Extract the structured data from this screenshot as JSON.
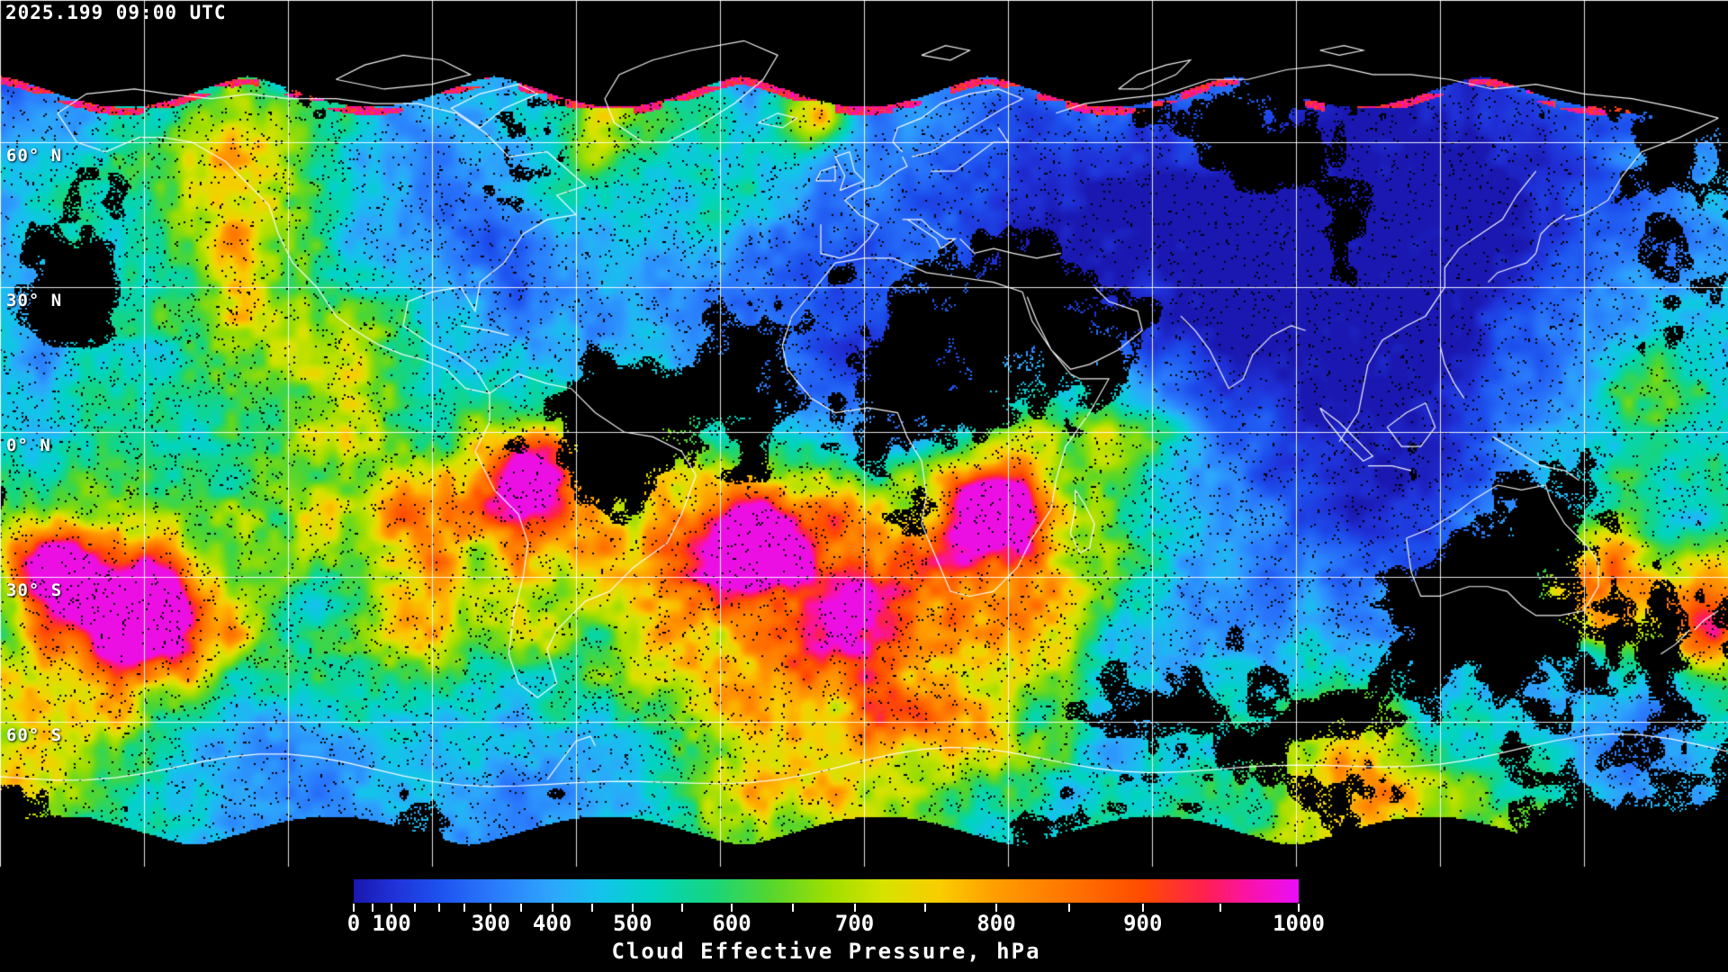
{
  "header": {
    "timestamp": "2025.199 09:00 UTC"
  },
  "map": {
    "latitude_labels": [
      {
        "text": "60° N",
        "lat": 60
      },
      {
        "text": "30° N",
        "lat": 30
      },
      {
        "text": "0° N",
        "lat": 0
      },
      {
        "text": "30° S",
        "lat": -30
      },
      {
        "text": "60° S",
        "lat": -60
      }
    ],
    "grid_color": "#ffffff",
    "coastline_color": "#ffffff",
    "background_color": "#000000",
    "lon_gridline_spacing_deg": 30,
    "lat_gridline_spacing_deg": 30
  },
  "colorbar": {
    "title": "Cloud Effective Pressure, hPa",
    "units": "hPa",
    "min": 0,
    "max": 1000,
    "labeled_ticks": [
      0,
      100,
      300,
      400,
      500,
      600,
      700,
      800,
      900,
      1000
    ],
    "minor_tick_step": 50,
    "scale_anchors": [
      {
        "value": 0,
        "pct": 0
      },
      {
        "value": 100,
        "pct": 4.0
      },
      {
        "value": 200,
        "pct": 9.0
      },
      {
        "value": 300,
        "pct": 14.5
      },
      {
        "value": 400,
        "pct": 21.0
      },
      {
        "value": 500,
        "pct": 29.5
      },
      {
        "value": 600,
        "pct": 40.0
      },
      {
        "value": 700,
        "pct": 53.0
      },
      {
        "value": 800,
        "pct": 68.0
      },
      {
        "value": 900,
        "pct": 83.5
      },
      {
        "value": 1000,
        "pct": 100
      }
    ],
    "gradient_stops": [
      {
        "value": 0,
        "color": "#1a17ad"
      },
      {
        "value": 100,
        "color": "#2030d6"
      },
      {
        "value": 200,
        "color": "#1d51ee"
      },
      {
        "value": 300,
        "color": "#2a78fc"
      },
      {
        "value": 400,
        "color": "#2ea6fc"
      },
      {
        "value": 460,
        "color": "#15c3ec"
      },
      {
        "value": 520,
        "color": "#02d4c0"
      },
      {
        "value": 580,
        "color": "#17d57e"
      },
      {
        "value": 630,
        "color": "#52d62e"
      },
      {
        "value": 680,
        "color": "#a0de00"
      },
      {
        "value": 720,
        "color": "#d6e300"
      },
      {
        "value": 760,
        "color": "#f9cd00"
      },
      {
        "value": 800,
        "color": "#ff9d00"
      },
      {
        "value": 850,
        "color": "#ff7400"
      },
      {
        "value": 900,
        "color": "#ff4b00"
      },
      {
        "value": 940,
        "color": "#ff2050"
      },
      {
        "value": 970,
        "color": "#fa12ae"
      },
      {
        "value": 1000,
        "color": "#e80ef8"
      }
    ]
  },
  "chart_data": {
    "type": "heatmap",
    "title": "Cloud Effective Pressure, hPa",
    "timestamp": "2025.199 09:00 UTC",
    "projection": "equirectangular",
    "lat_gridlines_deg": [
      60,
      30,
      0,
      -30,
      -60
    ],
    "lon_gridline_spacing_deg": 30,
    "value_range_hpa": [
      0,
      1000
    ],
    "colorbar_scale": "nonlinear (spacing widens toward 1000 hPa)",
    "no_data_color": "#000000",
    "legend_position": "bottom-center"
  }
}
